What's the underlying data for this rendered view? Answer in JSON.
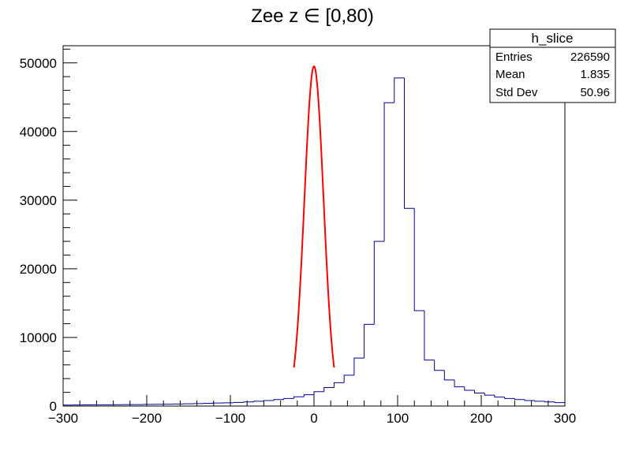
{
  "chart_data": {
    "type": "bar",
    "title": "Zee z ∈ [0,80)",
    "xlabel": "",
    "ylabel": "",
    "xlim": [
      -300,
      300
    ],
    "ylim": [
      0,
      52500
    ],
    "grid": false,
    "x_ticks": [
      "−300",
      "−200",
      "−100",
      "0",
      "100",
      "200",
      "300"
    ],
    "x_tick_values": [
      -300,
      -200,
      -100,
      0,
      100,
      200,
      300
    ],
    "y_ticks": [
      "0",
      "10000",
      "20000",
      "30000",
      "40000",
      "50000"
    ],
    "y_tick_values": [
      0,
      10000,
      20000,
      30000,
      40000,
      50000
    ],
    "bin_width": 12,
    "bin_low": -300,
    "histogram_color": "#000099",
    "fit_color": "#ff0000",
    "values": [
      150,
      160,
      170,
      180,
      190,
      200,
      210,
      220,
      240,
      260,
      280,
      300,
      330,
      360,
      400,
      440,
      480,
      530,
      600,
      700,
      800,
      950,
      1100,
      1350,
      1650,
      2100,
      2700,
      3400,
      4500,
      7000,
      11900,
      24000,
      44200,
      47800,
      28800,
      13900,
      6700,
      5200,
      3800,
      2800,
      2300,
      1900,
      1600,
      1300,
      1100,
      950,
      800,
      700,
      600,
      500
    ],
    "fit": {
      "function": "gaus",
      "constant": 49500,
      "mean": 0,
      "sigma": 11.5,
      "range": [
        -24,
        24
      ]
    },
    "stats": {
      "name": "h_slice",
      "entries_label": "Entries",
      "entries": "226590",
      "mean_label": "Mean",
      "mean": "1.835",
      "stddev_label": "Std Dev",
      "stddev": "50.96"
    }
  }
}
